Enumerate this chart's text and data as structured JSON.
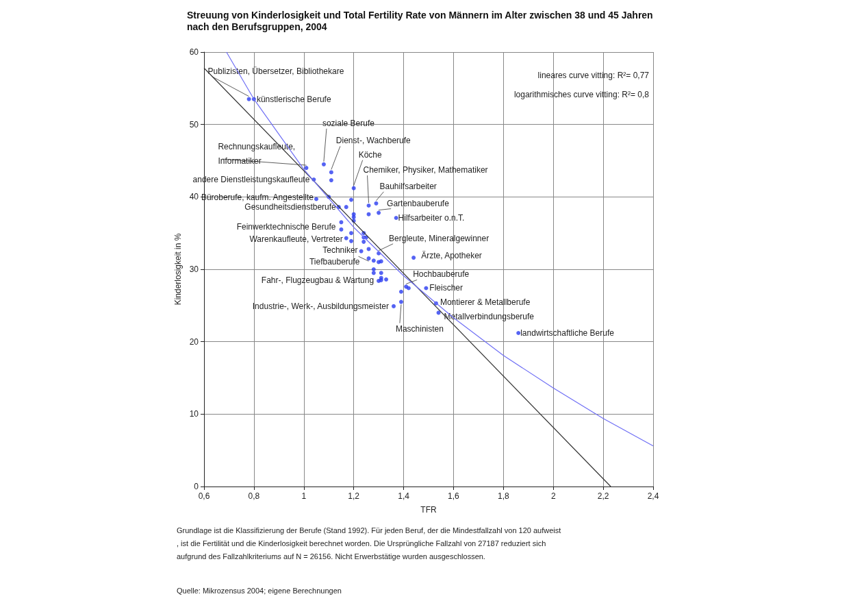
{
  "chart_data": {
    "type": "scatter",
    "title": "Streuung von Kinderlosigkeit und Total Fertility Rate von Männern im Alter zwischen 38 und 45 Jahren nach den Berufsgruppen, 2004",
    "xlabel": "TFR",
    "ylabel": "Kinderlosigkeit in %",
    "grid": true,
    "xlim": [
      0.6,
      2.4
    ],
    "xticks": [
      {
        "value": 0.6,
        "label": "0,6"
      },
      {
        "value": 0.8,
        "label": "0,8"
      },
      {
        "value": 1,
        "label": "1"
      },
      {
        "value": 1.2,
        "label": "1,2"
      },
      {
        "value": 1.4,
        "label": "1,4"
      },
      {
        "value": 1.6,
        "label": "1,6"
      },
      {
        "value": 1.8,
        "label": "1,8"
      },
      {
        "value": 2,
        "label": "2"
      },
      {
        "value": 2.2,
        "label": "2,2"
      },
      {
        "value": 2.4,
        "label": "2,4"
      }
    ],
    "ylim": [
      0,
      60
    ],
    "yticks": [
      0,
      10,
      20,
      30,
      40,
      50,
      60
    ],
    "series": [
      {
        "marker": "circle",
        "color": "#2a3cf0",
        "x": [
          0.78,
          0.8,
          1.01,
          1.08,
          1.11,
          1.04,
          1.11,
          1.2,
          1.05,
          1.1,
          1.19,
          1.26,
          1.29,
          1.14,
          1.17,
          1.26,
          1.3,
          1.2,
          1.37,
          1.2,
          1.2,
          1.15,
          1.15,
          1.17,
          1.19,
          1.19,
          1.24,
          1.24,
          1.25,
          1.24,
          1.23,
          1.26,
          1.3,
          1.44,
          1.26,
          1.28,
          1.3,
          1.31,
          1.28,
          1.28,
          1.31,
          1.3,
          1.31,
          1.31,
          1.33,
          1.41,
          1.42,
          1.49,
          1.39,
          1.39,
          1.36,
          1.53,
          1.54,
          1.86
        ],
        "values": [
          53.5,
          53.5,
          44,
          44.5,
          43.4,
          42.4,
          42.3,
          41.2,
          39.7,
          40,
          39.6,
          38.8,
          39.1,
          38.6,
          38.6,
          37.6,
          37.8,
          37.6,
          37.1,
          37.2,
          36.7,
          36.5,
          35.5,
          34.3,
          35,
          33.9,
          35,
          34.4,
          34.4,
          33.8,
          32.5,
          32.8,
          32.2,
          31.6,
          31.5,
          31.2,
          31,
          31.1,
          30,
          29.5,
          29.5,
          28.4,
          28.5,
          28.8,
          28.6,
          27.6,
          27.4,
          27.4,
          26.9,
          25.5,
          24.9,
          25.3,
          24,
          21.2
        ]
      },
      {
        "type": "line",
        "color": "#333333",
        "x": [
          0.6,
          2.23
        ],
        "values": [
          57.8,
          0
        ]
      },
      {
        "type": "line",
        "color": "#6f6ff5",
        "x": [
          0.69,
          0.8,
          1,
          1.2,
          1.4,
          1.6,
          1.8,
          2,
          2.2,
          2.4
        ],
        "values": [
          60,
          53.5,
          43.8,
          35.8,
          29.1,
          23.3,
          18.1,
          13.6,
          9.4,
          5.6
        ]
      }
    ],
    "annotations": [
      {
        "text": "Publizisten, Übersetzer, Bibliothekare",
        "x": 0.78,
        "y": 53.5
      },
      {
        "text": "künstlerische Berufe",
        "x": 0.8,
        "y": 53.5
      },
      {
        "text": "soziale Berufe",
        "x": 1.08,
        "y": 44.5
      },
      {
        "text": "Dienst-, Wachberufe",
        "x": 1.11,
        "y": 43.4
      },
      {
        "text": "Rechnungskaufleute,\nInformatiker",
        "x": 1.01,
        "y": 44
      },
      {
        "text": "Köche",
        "x": 1.2,
        "y": 41.2
      },
      {
        "text": "andere Dienstleistungskaufleute",
        "x": 1.04,
        "y": 42.4
      },
      {
        "text": "Chemiker, Physiker, Mathematiker",
        "x": 1.26,
        "y": 38.8
      },
      {
        "text": "Bauhilfsarbeiter",
        "x": 1.29,
        "y": 39.1
      },
      {
        "text": "Büroberufe, kaufm. Angestellte",
        "x": 1.05,
        "y": 39.7
      },
      {
        "text": "Gesundheitsdienstberufe",
        "x": 1.14,
        "y": 38.6
      },
      {
        "text": "Gartenbauberufe",
        "x": 1.3,
        "y": 37.8
      },
      {
        "text": "Hilfsarbeiter o.n.T.",
        "x": 1.37,
        "y": 37.1
      },
      {
        "text": "Feinwerktechnische Berufe",
        "x": 1.15,
        "y": 35.5
      },
      {
        "text": "Warenkaufleute, Vertreter",
        "x": 1.17,
        "y": 34.3
      },
      {
        "text": "Bergleute, Mineralgewinner",
        "x": 1.3,
        "y": 32.2
      },
      {
        "text": "Techniker",
        "x": 1.23,
        "y": 32.5
      },
      {
        "text": "Ärzte, Apotheker",
        "x": 1.44,
        "y": 31.6
      },
      {
        "text": "Tiefbauberufe",
        "x": 1.26,
        "y": 31.5
      },
      {
        "text": "Hochbauberufe",
        "x": 1.41,
        "y": 27.6
      },
      {
        "text": "Fahr-, Flugzeugbau & Wartung",
        "x": 1.3,
        "y": 28.4
      },
      {
        "text": "Fleischer",
        "x": 1.49,
        "y": 27.4
      },
      {
        "text": "Industrie-, Werk-, Ausbildungsmeister",
        "x": 1.36,
        "y": 24.9
      },
      {
        "text": "Montierer & Metallberufe",
        "x": 1.53,
        "y": 25.3
      },
      {
        "text": "Metallverbindungsberufe",
        "x": 1.54,
        "y": 24
      },
      {
        "text": "Maschinisten",
        "x": 1.39,
        "y": 25.5
      },
      {
        "text": "landwirtschaftliche Berufe",
        "x": 1.86,
        "y": 21.2
      },
      "lineares curve vitting: R²= 0,77",
      "logarithmisches curve vitting: R²= 0,8",
      "Grundlage ist die Klassifizierung der Berufe (Stand 1992). Für jeden Beruf, der die Mindestfallzahl von 120 aufweist, ist die Fertilität und die Kinderlosigkeit berechnet worden. Die Ursprüngliche Fallzahl von 27187 reduziert sich aufgrund des Fallzahlkriteriums auf N = 26156. Nicht Erwerbstätige wurden ausgeschlossen.",
      "Quelle: Mikrozensus 2004; eigene Berechnungen"
    ]
  }
}
